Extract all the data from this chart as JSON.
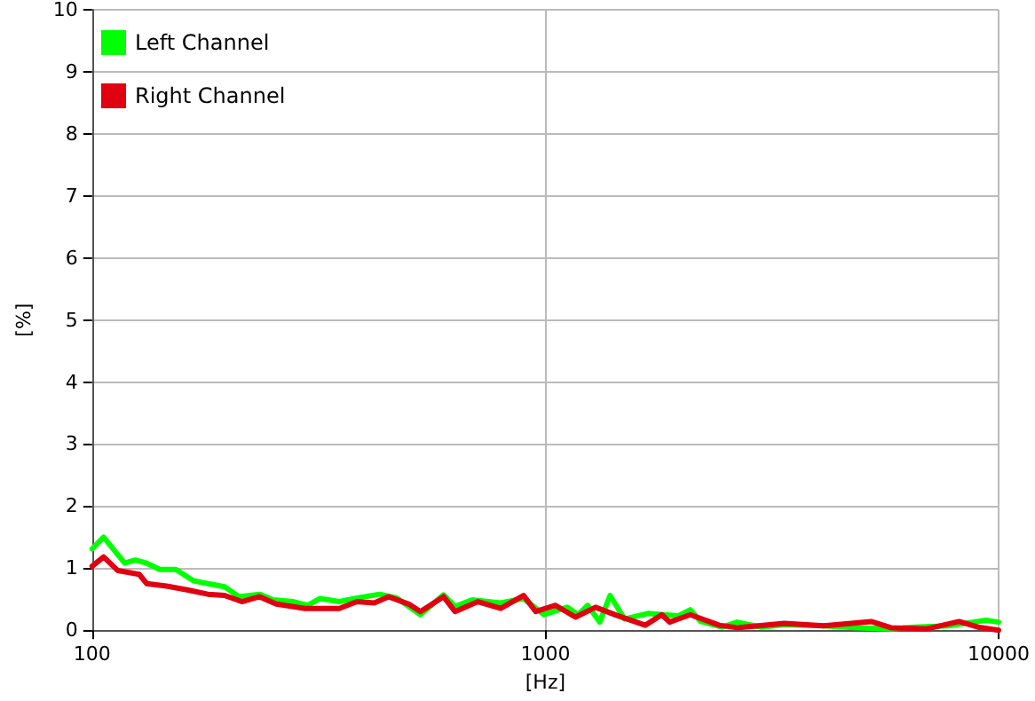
{
  "chart_data": {
    "type": "line",
    "xlabel": "[Hz]",
    "ylabel": "[%]",
    "log": "x",
    "grid": true,
    "legend": "top left",
    "marker": "none",
    "line_style": "solid",
    "xlim": [
      100,
      10000
    ],
    "xticks": [
      100,
      1000,
      10000
    ],
    "ylim": [
      0,
      10
    ],
    "yticks": [
      0,
      1,
      2,
      3,
      4,
      5,
      6,
      7,
      8,
      9,
      10
    ],
    "series": [
      {
        "name": "Left Channel",
        "color": "#00ff00",
        "x": [
          100,
          106,
          118,
          124.5,
          132,
          141,
          153,
          167,
          177,
          196,
          211,
          234,
          251,
          278,
          299,
          318,
          351,
          384,
          431,
          470,
          530,
          596,
          632,
          689,
          797,
          895,
          993,
          1117,
          1181,
          1240,
          1318,
          1389,
          1495,
          1683,
          1962,
          2088,
          2202,
          2455,
          2648,
          2992,
          3364,
          4114,
          4879,
          5787,
          6550,
          7760,
          9390,
          10000
        ],
        "values": [
          1.31,
          1.5,
          1.08,
          1.13,
          1.08,
          0.98,
          0.98,
          0.8,
          0.76,
          0.7,
          0.54,
          0.58,
          0.49,
          0.46,
          0.4,
          0.51,
          0.46,
          0.52,
          0.58,
          0.52,
          0.25,
          0.57,
          0.38,
          0.49,
          0.44,
          0.51,
          0.25,
          0.37,
          0.25,
          0.4,
          0.13,
          0.56,
          0.18,
          0.27,
          0.23,
          0.33,
          0.14,
          0.05,
          0.13,
          0.05,
          0.09,
          0.07,
          0.04,
          0.02,
          0.05,
          0.07,
          0.16,
          0.13
        ]
      },
      {
        "name": "Right Channel",
        "color": "#e00010",
        "x": [
          100,
          106,
          114,
          127,
          132,
          146,
          162,
          180,
          196,
          214,
          234,
          255,
          295,
          351,
          384,
          419,
          451,
          500,
          530,
          596,
          632,
          710,
          797,
          895,
          952,
          1053,
          1165,
          1290,
          1435,
          1661,
          1807,
          1880,
          2088,
          2420,
          2648,
          3364,
          4114,
          5235,
          5787,
          6920,
          8180,
          9000,
          10000
        ],
        "values": [
          1.03,
          1.18,
          0.96,
          0.9,
          0.75,
          0.71,
          0.65,
          0.58,
          0.56,
          0.46,
          0.54,
          0.42,
          0.35,
          0.35,
          0.46,
          0.44,
          0.54,
          0.42,
          0.3,
          0.54,
          0.3,
          0.46,
          0.35,
          0.56,
          0.3,
          0.4,
          0.21,
          0.37,
          0.24,
          0.08,
          0.25,
          0.13,
          0.25,
          0.08,
          0.04,
          0.11,
          0.07,
          0.14,
          0.04,
          0.02,
          0.14,
          0.05,
          0.0
        ]
      }
    ]
  }
}
